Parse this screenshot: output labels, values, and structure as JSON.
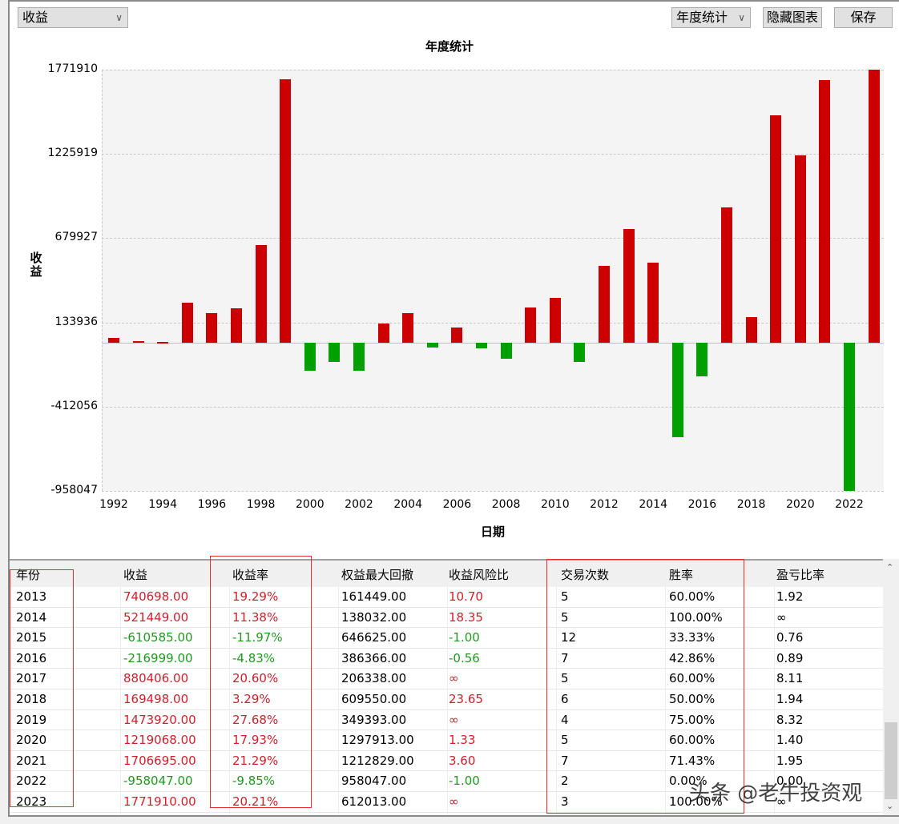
{
  "toolbar": {
    "metric_select": {
      "value": "收益",
      "icon": "chevron-down-icon"
    },
    "stats_select": {
      "value": "年度统计",
      "icon": "chevron-down-icon"
    },
    "hide_chart_label": "隐藏图表",
    "save_label": "保存"
  },
  "chart": {
    "title": "年度统计",
    "ylabel": "收益",
    "xlabel": "日期",
    "yticks": [
      "1771910",
      "1225919",
      "679927",
      "133936",
      "-412056",
      "-958047"
    ],
    "xticks": [
      "1992",
      "1994",
      "1996",
      "1998",
      "2000",
      "2002",
      "2004",
      "2006",
      "2008",
      "2010",
      "2012",
      "2014",
      "2016",
      "2018",
      "2020",
      "2022"
    ],
    "colors": {
      "positive": "#cc0000",
      "negative": "#00a000"
    }
  },
  "chart_data": {
    "type": "bar",
    "title": "年度统计",
    "xlabel": "日期",
    "ylabel": "收益",
    "categories": [
      "1992",
      "1993",
      "1994",
      "1995",
      "1996",
      "1997",
      "1998",
      "1999",
      "2000",
      "2001",
      "2002",
      "2003",
      "2004",
      "2005",
      "2006",
      "2007",
      "2008",
      "2009",
      "2010",
      "2011",
      "2012",
      "2013",
      "2014",
      "2015",
      "2016",
      "2017",
      "2018",
      "2019",
      "2020",
      "2021",
      "2022",
      "2023"
    ],
    "values": [
      31000,
      15000,
      6000,
      260000,
      192000,
      224000,
      634000,
      1711000,
      -177000,
      -120000,
      -182000,
      125000,
      192000,
      -31000,
      99000,
      -36000,
      -104000,
      229000,
      291000,
      -120000,
      499000,
      740698,
      521449,
      -610585,
      -216999,
      880406,
      169498,
      1473920,
      1219068,
      1706695,
      -958047,
      1771910
    ],
    "ylim": [
      -958047,
      1771910
    ],
    "yticks": [
      1771910,
      1225919,
      679927,
      133936,
      -412056,
      -958047
    ],
    "grid": true,
    "legend": "none"
  },
  "table": {
    "headers": [
      "年份",
      "收益",
      "收益率",
      "权益最大回撤",
      "收益风险比",
      "交易次数",
      "胜率",
      "盈亏比率"
    ],
    "rows": [
      {
        "year": "2013",
        "profit": "740698.00",
        "rate": "19.29%",
        "maxdd": "161449.00",
        "rr": "10.70",
        "trades": "5",
        "win": "60.00%",
        "pl": "1.92",
        "sign": "pos",
        "rrsign": "pos"
      },
      {
        "year": "2014",
        "profit": "521449.00",
        "rate": "11.38%",
        "maxdd": "138032.00",
        "rr": "18.35",
        "trades": "5",
        "win": "100.00%",
        "pl": "∞",
        "sign": "pos",
        "rrsign": "pos"
      },
      {
        "year": "2015",
        "profit": "-610585.00",
        "rate": "-11.97%",
        "maxdd": "646625.00",
        "rr": "-1.00",
        "trades": "12",
        "win": "33.33%",
        "pl": "0.76",
        "sign": "neg",
        "rrsign": "neg"
      },
      {
        "year": "2016",
        "profit": "-216999.00",
        "rate": "-4.83%",
        "maxdd": "386366.00",
        "rr": "-0.56",
        "trades": "7",
        "win": "42.86%",
        "pl": "0.89",
        "sign": "neg",
        "rrsign": "neg"
      },
      {
        "year": "2017",
        "profit": "880406.00",
        "rate": "20.60%",
        "maxdd": "206338.00",
        "rr": "∞",
        "trades": "5",
        "win": "60.00%",
        "pl": "8.11",
        "sign": "pos",
        "rrsign": "pos"
      },
      {
        "year": "2018",
        "profit": "169498.00",
        "rate": "3.29%",
        "maxdd": "609550.00",
        "rr": "23.65",
        "trades": "6",
        "win": "50.00%",
        "pl": "1.94",
        "sign": "pos",
        "rrsign": "pos"
      },
      {
        "year": "2019",
        "profit": "1473920.00",
        "rate": "27.68%",
        "maxdd": "349393.00",
        "rr": "∞",
        "trades": "4",
        "win": "75.00%",
        "pl": "8.32",
        "sign": "pos",
        "rrsign": "pos"
      },
      {
        "year": "2020",
        "profit": "1219068.00",
        "rate": "17.93%",
        "maxdd": "1297913.00",
        "rr": "1.33",
        "trades": "5",
        "win": "60.00%",
        "pl": "1.40",
        "sign": "pos",
        "rrsign": "pos"
      },
      {
        "year": "2021",
        "profit": "1706695.00",
        "rate": "21.29%",
        "maxdd": "1212829.00",
        "rr": "3.60",
        "trades": "7",
        "win": "71.43%",
        "pl": "1.95",
        "sign": "pos",
        "rrsign": "pos"
      },
      {
        "year": "2022",
        "profit": "-958047.00",
        "rate": "-9.85%",
        "maxdd": "958047.00",
        "rr": "-1.00",
        "trades": "2",
        "win": "0.00%",
        "pl": "0.00",
        "sign": "neg",
        "rrsign": "neg"
      },
      {
        "year": "2023",
        "profit": "1771910.00",
        "rate": "20.21%",
        "maxdd": "612013.00",
        "rr": "∞",
        "trades": "3",
        "win": "100.00%",
        "pl": "∞",
        "sign": "pos",
        "rrsign": "pos"
      }
    ]
  },
  "watermark": "头条 @老牛投资观"
}
